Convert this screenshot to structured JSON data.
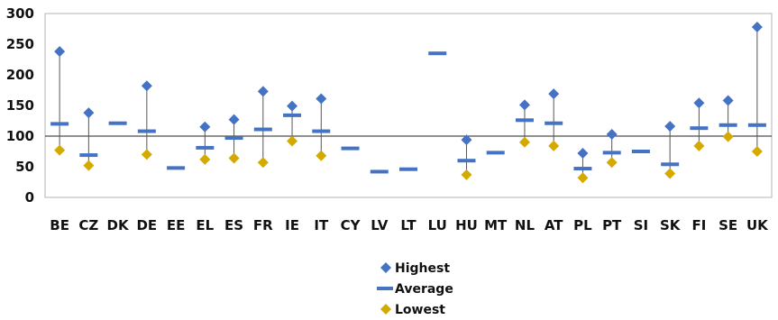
{
  "chart_data": {
    "type": "scatter",
    "ylim": [
      0,
      300
    ],
    "yticks": [
      0,
      50,
      100,
      150,
      200,
      250,
      300
    ],
    "grid": false,
    "legend_position": "bottom-center",
    "categories": [
      "BE",
      "CZ",
      "DK",
      "DE",
      "EE",
      "EL",
      "ES",
      "FR",
      "IE",
      "IT",
      "CY",
      "LV",
      "LT",
      "LU",
      "HU",
      "MT",
      "NL",
      "AT",
      "PL",
      "PT",
      "SI",
      "SK",
      "FI",
      "SE",
      "UK"
    ],
    "series": [
      {
        "name": "Highest",
        "marker": "diamond",
        "color": "#4472c4",
        "values": [
          238,
          138,
          null,
          182,
          null,
          115,
          127,
          173,
          149,
          161,
          null,
          null,
          null,
          null,
          94,
          null,
          151,
          169,
          72,
          103,
          null,
          116,
          154,
          158,
          278
        ]
      },
      {
        "name": "Average",
        "marker": "dash",
        "color": "#4472c4",
        "values": [
          120,
          69,
          121,
          108,
          48,
          81,
          97,
          111,
          134,
          108,
          80,
          42,
          46,
          235,
          60,
          73,
          126,
          121,
          47,
          73,
          75,
          54,
          113,
          118,
          118
        ]
      },
      {
        "name": "Lowest",
        "marker": "diamond",
        "color": "#d4aa00",
        "values": [
          77,
          52,
          null,
          70,
          null,
          62,
          64,
          57,
          92,
          68,
          null,
          null,
          null,
          null,
          37,
          null,
          90,
          84,
          32,
          57,
          null,
          39,
          84,
          99,
          75
        ]
      }
    ],
    "reference_line": 100
  }
}
